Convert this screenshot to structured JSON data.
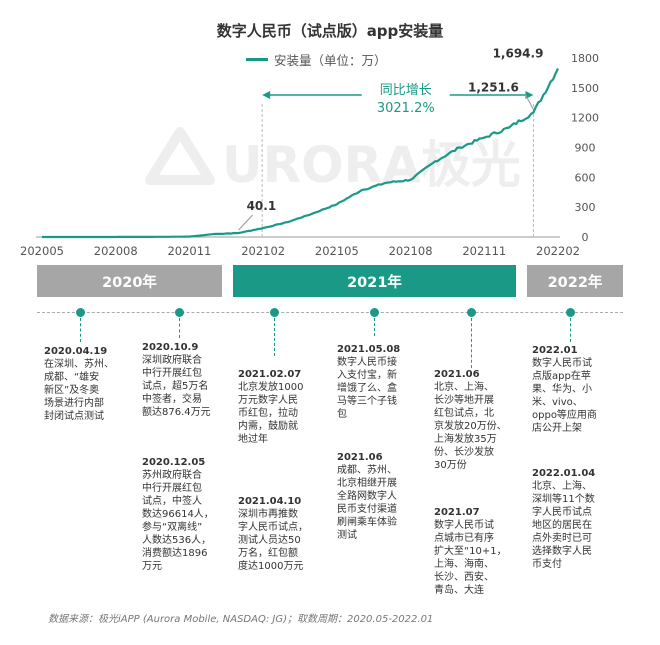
{
  "chart_data": {
    "type": "line",
    "title": "数字人民币（试点版）app安装量",
    "series": [
      {
        "name": "安装量（单位：万）",
        "x": [
          "202005",
          "202006",
          "202007",
          "202008",
          "202009",
          "202010",
          "202011",
          "202012",
          "202101",
          "202102",
          "202103",
          "202104",
          "202105",
          "202106",
          "202107",
          "202108",
          "202109",
          "202110",
          "202111",
          "202112",
          "202201",
          "202202"
        ],
        "values": [
          0,
          0,
          0,
          0.5,
          1,
          2,
          4,
          30,
          40.1,
          90,
          150,
          235,
          330,
          470,
          545,
          575,
          760,
          900,
          1000,
          1100,
          1251.6,
          1694.9
        ]
      }
    ],
    "x_ticks": [
      "202005",
      "202008",
      "202011",
      "202102",
      "202105",
      "202108",
      "202111",
      "202202"
    ],
    "ylim": [
      0,
      1800
    ],
    "y_ticks": [
      "0",
      "300",
      "600",
      "900",
      "1200",
      "1500",
      "1800"
    ],
    "annotations": [
      {
        "label": "40.1",
        "x": "202101",
        "value": 40.1
      },
      {
        "label": "1,251.6",
        "x": "202201",
        "value": 1251.6
      },
      {
        "label": "1,694.9",
        "x": "202202",
        "value": 1694.9
      }
    ],
    "growth": {
      "label": "同比增长",
      "value": "3021.2%"
    },
    "watermark": "URORA极光",
    "line_color": "#1a9a86"
  },
  "timeline": {
    "years": [
      "2020年",
      "2021年",
      "2022年"
    ],
    "events": [
      {
        "date": "2020.04.19",
        "text": "在深圳、苏州、\n成都、“雄安\n新区”及冬奥\n场景进行内部\n封闭试点测试"
      },
      {
        "date": "2020.10.9",
        "text": "深圳政府联合\n中行开展红包\n试点，超5万名\n中签者，交易\n额达876.4万元"
      },
      {
        "date": "2020.12.05",
        "text": "苏州政府联合\n中行开展红包\n试点，中签人\n数达96614人，\n参与“双离线”\n人数达536人，\n消费额达1896\n万元"
      },
      {
        "date": "2021.02.07",
        "text": "北京发放1000\n万元数字人民\n币红包，拉动\n内需，鼓励就\n地过年"
      },
      {
        "date": "2021.04.10",
        "text": "深圳市再推数\n字人民币试点，\n测试人员达50\n万名，红包额\n度达1000万元"
      },
      {
        "date": "2021.05.08",
        "text": "数字人民币接\n入支付宝，新\n增饿了么、盒\n马等三个子钱\n包"
      },
      {
        "date": "2021.06",
        "text": "成都、苏州、\n北京相继开展\n全路网数字人\n民币支付渠道\n刷闸乘车体验\n测试"
      },
      {
        "date": "2021.06",
        "text": "北京、上海、\n长沙等地开展\n红包试点，北\n京发放20万份、\n上海发放35万\n份、长沙发放\n30万份"
      },
      {
        "date": "2021.07",
        "text": "数字人民币试\n点城市已有序\n扩大至“10+1，\n上海、海南、\n长沙、西安、\n青岛、大连"
      },
      {
        "date": "2022.01",
        "text": "数字人民币试\n点版app在苹\n果、华为、小\n米、vivo、\noppo等应用商\n店公开上架"
      },
      {
        "date": "2022.01.04",
        "text": "北京、上海、\n深圳等11个数\n字人民币试点\n地区的居民在\n点外卖时已可\n选择数字人民\n币支付"
      }
    ]
  },
  "source": "数据来源：极光iAPP (Aurora Mobile, NASDAQ: JG)；取数周期：2020.05-2022.01"
}
